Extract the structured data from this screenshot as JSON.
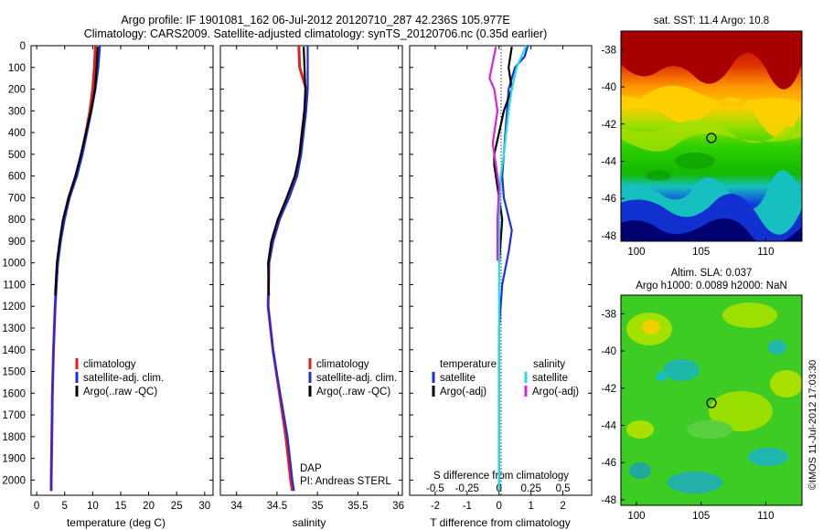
{
  "header": {
    "line1": "Argo profile: IF 1901081_162 06-Jul-2012 20120710_287 42.236S 105.977E",
    "line2": "Climatology: CARS2009. Satellite-adjusted climatology: synTS_20120706.nc (0.35d earlier)"
  },
  "depth_ticks": [
    0,
    100,
    200,
    300,
    400,
    500,
    600,
    700,
    800,
    900,
    1000,
    1100,
    1200,
    1300,
    1400,
    1500,
    1600,
    1700,
    1800,
    1900,
    2000
  ],
  "panel_temp": {
    "xlabel": "temperature (deg C)",
    "xticks": [
      0,
      5,
      10,
      15,
      20,
      25,
      30
    ],
    "legend": [
      "climatology",
      "satellite-adj. clim.",
      "Argo(..raw -QC)"
    ]
  },
  "panel_sal": {
    "xlabel": "salinity",
    "xticks": [
      "34",
      "34.5",
      "35",
      "35.5",
      "36"
    ],
    "legend": [
      "climatology",
      "satellite-adj. clim.",
      "Argo(..raw -QC)"
    ],
    "note1": "DAP",
    "note2": "PI: Andreas STERL"
  },
  "panel_diff": {
    "xlabel": "T difference from climatology",
    "xticks": [
      "-2",
      "-1",
      "0",
      "1",
      "2"
    ],
    "top_label": "S difference from climatology",
    "top_ticks": [
      "-0.5",
      "-0.25",
      "0",
      "0.25",
      "0.5"
    ],
    "legend_temp_title": "temperature",
    "legend_temp": [
      "satellite",
      "Argo(-adj)"
    ],
    "legend_sal_title": "salinity",
    "legend_sal": [
      "satellite",
      "Argo(-adj)"
    ]
  },
  "map_sst": {
    "title": "sat. SST: 11.4 Argo: 10.8",
    "yticks": [
      "-38",
      "-40",
      "-42",
      "-44",
      "-46",
      "-48"
    ],
    "xticks": [
      "100",
      "105",
      "110"
    ]
  },
  "map_sla": {
    "title1": "Altim. SLA: 0.037",
    "title2": "Argo h1000: 0.0089 h2000: NaN",
    "yticks": [
      "-38",
      "-40",
      "-42",
      "-44",
      "-46",
      "-48"
    ],
    "xticks": [
      "100",
      "105",
      "110"
    ]
  },
  "side_stamp": "©IMOS 11-Jul-2012 17:03:30",
  "colors": {
    "climatology": "#e81c1c",
    "satellite": "#1c2ee0",
    "argo": "#000000",
    "sat_sal": "#22e0e0",
    "argo_sal": "#e020e0"
  },
  "chart_data": [
    {
      "type": "line",
      "xlabel": "temperature (deg C)",
      "ylabel": "",
      "xlim": [
        -1,
        31.5
      ],
      "ylim": [
        2070,
        0
      ],
      "series": [
        {
          "name": "climatology",
          "x": [
            10.5,
            10.3,
            10.0,
            9.5,
            8.8,
            8.0,
            7.0,
            5.7,
            4.8,
            4.2,
            3.7,
            3.3,
            3.0,
            2.8,
            2.7,
            2.6,
            2.6
          ],
          "y": [
            0,
            100,
            200,
            300,
            400,
            500,
            600,
            700,
            800,
            900,
            1000,
            1200,
            1400,
            1600,
            1800,
            2000,
            2050
          ]
        },
        {
          "name": "satellite-adj. clim.",
          "x": [
            11.3,
            11.0,
            10.5,
            9.8,
            9.0,
            8.2,
            7.2,
            5.9,
            5.0,
            4.3,
            3.8,
            3.3,
            3.0,
            2.8,
            2.7,
            2.6,
            2.6
          ],
          "y": [
            0,
            100,
            200,
            300,
            400,
            500,
            600,
            700,
            800,
            900,
            1000,
            1200,
            1400,
            1600,
            1800,
            2000,
            2050
          ]
        },
        {
          "name": "Argo(..raw -QC)",
          "x": [
            10.9,
            10.7,
            10.4,
            9.7,
            8.8,
            7.9,
            6.9,
            5.7,
            4.7,
            4.1,
            3.6,
            3.3
          ],
          "y": [
            5,
            100,
            200,
            300,
            400,
            500,
            600,
            700,
            800,
            900,
            1000,
            1150
          ]
        }
      ]
    },
    {
      "type": "line",
      "xlabel": "salinity",
      "ylabel": "",
      "xlim": [
        33.8,
        36.05
      ],
      "ylim": [
        2070,
        0
      ],
      "series": [
        {
          "name": "climatology",
          "x": [
            34.77,
            34.78,
            34.86,
            34.84,
            34.81,
            34.78,
            34.73,
            34.64,
            34.53,
            34.45,
            34.4,
            34.39,
            34.45,
            34.53,
            34.61,
            34.67,
            34.69
          ],
          "y": [
            0,
            100,
            200,
            300,
            400,
            500,
            600,
            700,
            800,
            900,
            1000,
            1200,
            1400,
            1600,
            1800,
            2000,
            2050
          ]
        },
        {
          "name": "satellite-adj. clim.",
          "x": [
            34.88,
            34.88,
            34.88,
            34.86,
            34.83,
            34.8,
            34.75,
            34.65,
            34.53,
            34.45,
            34.4,
            34.39,
            34.45,
            34.54,
            34.63,
            34.69,
            34.71
          ],
          "y": [
            0,
            100,
            200,
            300,
            400,
            500,
            600,
            700,
            800,
            900,
            1000,
            1200,
            1400,
            1600,
            1800,
            2000,
            2050
          ]
        },
        {
          "name": "Argo(..raw -QC)",
          "x": [
            34.83,
            34.84,
            34.85,
            34.84,
            34.81,
            34.78,
            34.72,
            34.62,
            34.51,
            34.43,
            34.39,
            34.4
          ],
          "y": [
            5,
            100,
            200,
            300,
            400,
            500,
            600,
            700,
            800,
            900,
            1000,
            1150
          ]
        }
      ]
    },
    {
      "type": "line",
      "xlabel": "T difference from climatology",
      "ylabel": "",
      "xlim": [
        -2.8,
        2.9
      ],
      "ylim": [
        2070,
        0
      ],
      "series": [
        {
          "name": "satellite",
          "x": [
            0.9,
            0.8,
            0.5,
            0.3,
            0.25,
            0.2,
            0.15,
            0.1,
            0.15,
            0.4,
            0.3,
            0.1,
            0.0,
            0.0,
            0.0,
            0.0
          ],
          "y": [
            0,
            50,
            100,
            200,
            300,
            400,
            500,
            600,
            700,
            850,
            950,
            1100,
            1300,
            1600,
            1800,
            2050
          ]
        },
        {
          "name": "Argo(-adj)",
          "x": [
            0.4,
            0.3,
            0.4,
            0.15,
            0.0,
            -0.15,
            -0.15,
            -0.05,
            0.1,
            0.0
          ],
          "y": [
            5,
            100,
            200,
            300,
            400,
            500,
            550,
            650,
            800,
            1000
          ]
        },
        {
          "name": "salinity satellite",
          "x": [
            0.85,
            0.7,
            0.55,
            0.4,
            0.3,
            0.15,
            0.05,
            0.0,
            0.0,
            0.0,
            0.0,
            0.0
          ],
          "y": [
            0,
            50,
            100,
            200,
            300,
            500,
            600,
            800,
            1000,
            1300,
            1700,
            2050
          ]
        },
        {
          "name": "salinity Argo(-adj)",
          "x": [
            -0.1,
            -0.3,
            -0.15,
            -0.05,
            -0.2,
            -0.1,
            0.0,
            -0.05,
            -0.05
          ],
          "y": [
            5,
            150,
            200,
            300,
            450,
            550,
            650,
            800,
            990
          ]
        }
      ]
    }
  ]
}
